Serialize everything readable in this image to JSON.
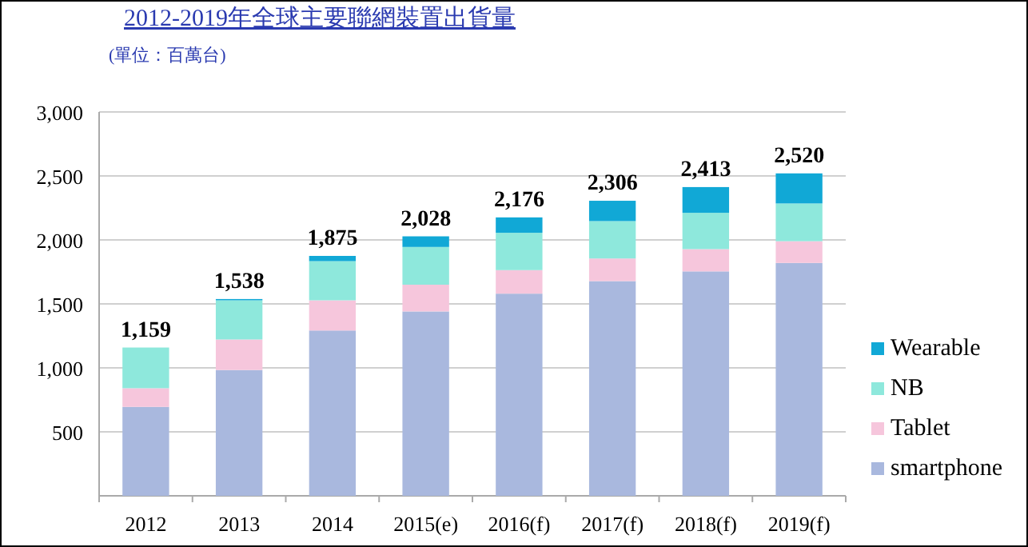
{
  "chart_data": {
    "type": "bar",
    "stacked": true,
    "title": "2012-2019年全球主要聯網裝置出貨量",
    "subtitle": "(單位：百萬台)",
    "categories": [
      "2012",
      "2013",
      "2014",
      "2015(e)",
      "2016(f)",
      "2017(f)",
      "2018(f)",
      "2019(f)"
    ],
    "series": [
      {
        "name": "smartphone",
        "color": "#a9b8de",
        "values": [
          695,
          983,
          1292,
          1441,
          1580,
          1678,
          1754,
          1820
        ]
      },
      {
        "name": "Tablet",
        "color": "#f6c6dc",
        "values": [
          146,
          239,
          236,
          209,
          184,
          177,
          174,
          170
        ]
      },
      {
        "name": "NB",
        "color": "#8ee8dc",
        "values": [
          318,
          306,
          306,
          295,
          292,
          292,
          284,
          295
        ]
      },
      {
        "name": "Wearable",
        "color": "#11a8d6",
        "values": [
          0,
          10,
          41,
          83,
          120,
          159,
          201,
          235
        ]
      }
    ],
    "totals": [
      "1,159",
      "1,538",
      "1,875",
      "2,028",
      "2,176",
      "2,306",
      "2,413",
      "2,520"
    ],
    "ylim": [
      0,
      3000
    ],
    "yticks": [
      {
        "value": 0,
        "label": null
      },
      {
        "value": 500,
        "label": "500"
      },
      {
        "value": 1000,
        "label": "1,000"
      },
      {
        "value": 1500,
        "label": "1,500"
      },
      {
        "value": 2000,
        "label": "2,000"
      },
      {
        "value": 2500,
        "label": "2,500"
      },
      {
        "value": 3000,
        "label": "3,000"
      }
    ],
    "grid": "y",
    "legend": "right"
  }
}
